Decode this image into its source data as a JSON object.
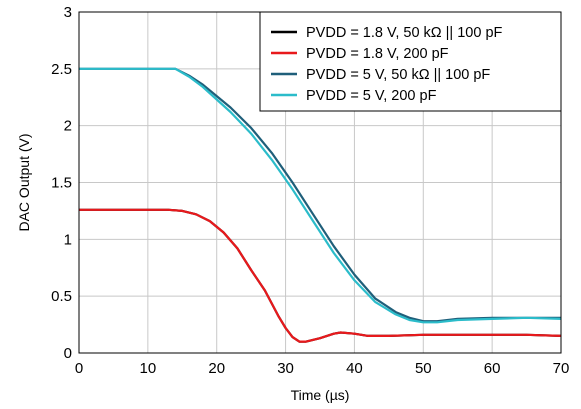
{
  "chart_data": {
    "type": "line",
    "title": "",
    "xlabel": "Time (µs)",
    "ylabel": "DAC Output (V)",
    "xlim": [
      0,
      70
    ],
    "ylim": [
      0,
      3
    ],
    "xticks": [
      0,
      10,
      20,
      30,
      40,
      50,
      60,
      70
    ],
    "yticks": [
      0,
      0.5,
      1,
      1.5,
      2,
      2.5,
      3
    ],
    "xtick_labels": [
      "0",
      "10",
      "20",
      "30",
      "40",
      "50",
      "60",
      "70"
    ],
    "ytick_labels": [
      "0",
      "0.5",
      "1",
      "1.5",
      "2",
      "2.5",
      "3"
    ],
    "grid": true,
    "legend_position": "top-right",
    "series": [
      {
        "name": "PVDD = 1.8 V, 50 kΩ || 100 pF",
        "color": "#000000",
        "x": [
          0,
          13,
          15,
          17,
          19,
          21,
          23,
          25,
          27,
          29,
          30,
          31,
          32,
          33,
          35,
          37,
          38,
          40,
          42,
          45,
          50,
          55,
          60,
          65,
          70
        ],
        "y": [
          1.26,
          1.26,
          1.25,
          1.22,
          1.16,
          1.06,
          0.92,
          0.73,
          0.55,
          0.32,
          0.22,
          0.14,
          0.1,
          0.1,
          0.13,
          0.17,
          0.18,
          0.17,
          0.15,
          0.15,
          0.16,
          0.16,
          0.16,
          0.16,
          0.15
        ]
      },
      {
        "name": "PVDD = 1.8 V, 200 pF",
        "color": "#e8191c",
        "x": [
          0,
          13,
          15,
          17,
          19,
          21,
          23,
          25,
          27,
          29,
          30,
          31,
          32,
          33,
          35,
          37,
          38,
          40,
          42,
          45,
          50,
          55,
          60,
          65,
          70
        ],
        "y": [
          1.26,
          1.26,
          1.25,
          1.22,
          1.16,
          1.06,
          0.92,
          0.73,
          0.55,
          0.32,
          0.22,
          0.14,
          0.1,
          0.1,
          0.13,
          0.17,
          0.18,
          0.17,
          0.15,
          0.15,
          0.16,
          0.16,
          0.16,
          0.16,
          0.15
        ]
      },
      {
        "name": "PVDD = 5 V, 50 kΩ || 100 pF",
        "color": "#1f5f7a",
        "x": [
          0,
          14,
          16,
          18,
          20,
          22,
          25,
          28,
          31,
          34,
          37,
          40,
          43,
          46,
          48,
          50,
          52,
          55,
          60,
          65,
          70
        ],
        "y": [
          2.5,
          2.5,
          2.44,
          2.36,
          2.26,
          2.16,
          1.98,
          1.76,
          1.5,
          1.22,
          0.94,
          0.69,
          0.48,
          0.36,
          0.31,
          0.28,
          0.28,
          0.3,
          0.31,
          0.31,
          0.31
        ]
      },
      {
        "name": "PVDD = 5 V, 200 pF",
        "color": "#2bbcca",
        "x": [
          0,
          14,
          16,
          18,
          20,
          22,
          25,
          28,
          31,
          34,
          37,
          40,
          43,
          46,
          48,
          50,
          52,
          55,
          60,
          65,
          70
        ],
        "y": [
          2.5,
          2.5,
          2.43,
          2.34,
          2.23,
          2.12,
          1.93,
          1.7,
          1.44,
          1.16,
          0.88,
          0.64,
          0.45,
          0.34,
          0.29,
          0.27,
          0.27,
          0.29,
          0.3,
          0.31,
          0.3
        ]
      }
    ]
  }
}
